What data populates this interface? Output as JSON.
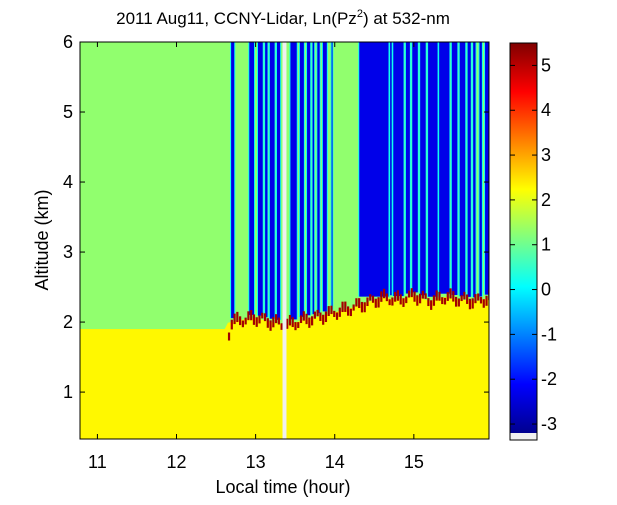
{
  "chart_data": {
    "type": "heatmap",
    "title": "2011 Aug11, CCNY-Lidar, Ln(Pz²) at 532-nm",
    "title_main": "2011 Aug11, CCNY-Lidar, Ln(Pz",
    "title_sup": "2",
    "title_tail": ") at 532-nm",
    "xlabel": "Local time (hour)",
    "ylabel": "Altitude (km)",
    "xlim": [
      10.78,
      15.95
    ],
    "ylim": [
      0.33,
      6.0
    ],
    "x_ticks": [
      11,
      12,
      13,
      14,
      15
    ],
    "y_ticks": [
      1,
      2,
      3,
      4,
      5,
      6
    ],
    "colorbar": {
      "label": "",
      "range": [
        -3.2,
        5.5
      ],
      "ticks": [
        -3,
        -2,
        -1,
        0,
        1,
        2,
        3,
        4,
        5
      ],
      "colormap": "jet",
      "missing_color": "#f0f0f0"
    },
    "layers": {
      "boundary_layer_value": 2.3,
      "free_troposphere_value": 1.3,
      "cloud_top_signal_value": 5.2,
      "clear_gap_signal_value": -2.3
    },
    "boundary_layer_top_km": [
      {
        "time": 12.65,
        "alt": 1.99
      },
      {
        "time": 12.8,
        "alt": 2.03
      },
      {
        "time": 13.0,
        "alt": 2.06
      },
      {
        "time": 13.2,
        "alt": 2.0
      },
      {
        "time": 13.4,
        "alt": 1.96
      },
      {
        "time": 13.6,
        "alt": 2.03
      },
      {
        "time": 13.8,
        "alt": 2.08
      },
      {
        "time": 14.0,
        "alt": 2.14
      },
      {
        "time": 14.2,
        "alt": 2.2
      },
      {
        "time": 14.4,
        "alt": 2.28
      },
      {
        "time": 14.6,
        "alt": 2.35
      },
      {
        "time": 14.8,
        "alt": 2.32
      },
      {
        "time": 15.0,
        "alt": 2.38
      },
      {
        "time": 15.2,
        "alt": 2.3
      },
      {
        "time": 15.4,
        "alt": 2.36
      },
      {
        "time": 15.6,
        "alt": 2.32
      },
      {
        "time": 15.8,
        "alt": 2.3
      },
      {
        "time": 15.95,
        "alt": 2.35
      }
    ],
    "clear_gaps_hours": [
      [
        12.69,
        12.73
      ],
      [
        12.92,
        12.98
      ],
      [
        13.03,
        13.09
      ],
      [
        13.12,
        13.15
      ],
      [
        13.18,
        13.24
      ],
      [
        13.27,
        13.31
      ],
      [
        13.44,
        13.52
      ],
      [
        13.56,
        13.61
      ],
      [
        13.65,
        13.69
      ],
      [
        13.72,
        13.74
      ],
      [
        13.78,
        13.81
      ],
      [
        13.85,
        13.9
      ],
      [
        13.96,
        13.97
      ],
      [
        14.31,
        14.68
      ],
      [
        14.7,
        14.72
      ],
      [
        14.74,
        14.87
      ],
      [
        14.9,
        14.95
      ],
      [
        14.98,
        15.05
      ],
      [
        15.08,
        15.15
      ],
      [
        15.18,
        15.3
      ],
      [
        15.32,
        15.45
      ],
      [
        15.48,
        15.55
      ],
      [
        15.58,
        15.65
      ],
      [
        15.68,
        15.72
      ],
      [
        15.75,
        15.78
      ],
      [
        15.83,
        15.86
      ],
      [
        15.9,
        15.95
      ]
    ],
    "missing_data_hours": [
      [
        13.34,
        13.39
      ]
    ]
  }
}
